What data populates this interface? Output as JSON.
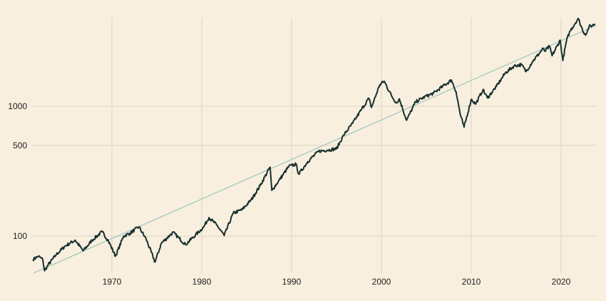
{
  "chart_data": {
    "type": "line",
    "title": "",
    "xlabel": "",
    "ylabel": "",
    "y_scale": "log",
    "xlim": [
      1961.2,
      2023.9
    ],
    "ylim": [
      45,
      6000
    ],
    "grid": true,
    "x_ticks": [
      1970,
      1980,
      1990,
      2000,
      2010,
      2020
    ],
    "x_tick_labels": [
      "1970",
      "1980",
      "1990",
      "2000",
      "2010",
      "2020"
    ],
    "y_ticks": [
      100,
      500,
      1000
    ],
    "y_tick_labels": [
      "100",
      "500",
      "1000"
    ],
    "colors": {
      "background": "#f8efdf",
      "grid": "#ddd4c4",
      "series": "#17302e",
      "trend": "#9cc6bf"
    },
    "series": [
      {
        "kind": "price",
        "x": [
          1961.2,
          1961.8,
          1962.3,
          1962.5,
          1962.9,
          1963.8,
          1964.8,
          1965.9,
          1966.8,
          1967.8,
          1968.9,
          1969.6,
          1970.4,
          1971.3,
          1972.0,
          1973.0,
          1973.8,
          1974.8,
          1975.5,
          1976.8,
          1977.5,
          1978.2,
          1979.3,
          1980.2,
          1980.8,
          1981.7,
          1982.5,
          1983.5,
          1984.5,
          1985.5,
          1986.5,
          1987.6,
          1987.8,
          1988.5,
          1989.7,
          1990.5,
          1990.8,
          1991.8,
          1993.0,
          1994.0,
          1995.0,
          1995.8,
          1996.8,
          1997.8,
          1998.6,
          1998.9,
          1999.8,
          2000.3,
          2001.2,
          2001.7,
          2002.0,
          2002.8,
          2003.8,
          2004.8,
          2005.8,
          2006.8,
          2007.8,
          2008.3,
          2008.8,
          2009.2,
          2010.0,
          2010.5,
          2011.3,
          2011.8,
          2012.8,
          2013.8,
          2014.8,
          2015.6,
          2016.1,
          2016.8,
          2018.0,
          2018.2,
          2018.7,
          2019.0,
          2019.9,
          2020.2,
          2020.6,
          2021.0,
          2021.9,
          2022.5,
          2022.8,
          2023.1,
          2023.5,
          2023.8
        ],
        "y": [
          66,
          70,
          66,
          54,
          60,
          72,
          84,
          93,
          77,
          93,
          108,
          92,
          70,
          100,
          105,
          118,
          95,
          63,
          88,
          107,
          96,
          86,
          102,
          117,
          139,
          121,
          101,
          150,
          160,
          190,
          245,
          340,
          225,
          262,
          345,
          358,
          300,
          375,
          450,
          460,
          470,
          600,
          740,
          950,
          1150,
          980,
          1460,
          1560,
          1180,
          1060,
          1140,
          780,
          1080,
          1180,
          1260,
          1420,
          1590,
          1300,
          850,
          690,
          1130,
          1040,
          1340,
          1160,
          1420,
          1810,
          2050,
          2090,
          1850,
          2200,
          2780,
          2650,
          2900,
          2450,
          3230,
          2250,
          3200,
          3800,
          4750,
          3700,
          3600,
          4100,
          4200,
          4300
        ]
      },
      {
        "kind": "trend",
        "x": [
          1961.3,
          2023.8
        ],
        "y": [
          52,
          4170
        ]
      }
    ]
  }
}
